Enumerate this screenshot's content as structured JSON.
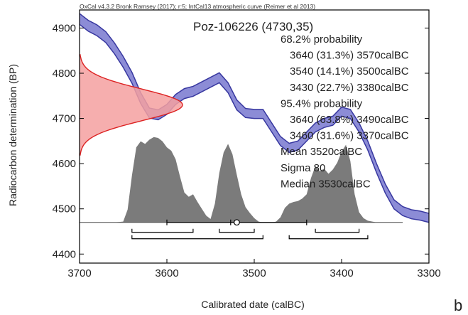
{
  "chart_data": {
    "type": "area",
    "credit": "OxCal v4.3.2 Bronk Ramsey (2017); r:5; IntCal13 atmospheric curve (Reimer et al 2013)",
    "title": "Poz-106226 (4730,35)",
    "xlabel": "Calibrated date (calBC)",
    "ylabel": "Radiocarbon determination (BP)",
    "corner_label": "b",
    "xlim": [
      3700,
      3300
    ],
    "ylim": [
      4380,
      4940
    ],
    "x_ticks": [
      "3700",
      "3600",
      "3500",
      "3400",
      "3300"
    ],
    "y_ticks": [
      "4400",
      "4500",
      "4600",
      "4700",
      "4800",
      "4900"
    ],
    "annotations": [
      "68.2% probability",
      "3640 (31.3%) 3570calBC",
      "3540 (14.1%) 3500calBC",
      "3430 (22.7%) 3380calBC",
      "95.4% probability",
      "3640 (63.8%) 3490calBC",
      "3460 (31.6%) 3370calBC",
      "Mean 3520calBC",
      "Sigma 80",
      "Median 3530calBC"
    ],
    "colors": {
      "curve_fill": "#8c8cd6",
      "curve_line": "#3838a0",
      "measurement_fill": "#f4a0a0",
      "measurement_line": "#dd2222",
      "posterior_fill": "#7b7b7b"
    },
    "measurement": {
      "mean_bp": 4730,
      "sigma_bp": 35
    },
    "calibration_curve": {
      "x": [
        3700,
        3690,
        3680,
        3670,
        3660,
        3650,
        3640,
        3630,
        3620,
        3610,
        3600,
        3590,
        3580,
        3570,
        3560,
        3550,
        3540,
        3530,
        3520,
        3510,
        3500,
        3490,
        3480,
        3470,
        3460,
        3450,
        3440,
        3430,
        3420,
        3410,
        3400,
        3390,
        3380,
        3370,
        3360,
        3350,
        3340,
        3330,
        3320,
        3310,
        3300
      ],
      "mean": [
        4920,
        4905,
        4895,
        4880,
        4855,
        4825,
        4790,
        4745,
        4712,
        4708,
        4720,
        4742,
        4755,
        4760,
        4770,
        4780,
        4790,
        4768,
        4730,
        4712,
        4710,
        4710,
        4680,
        4650,
        4635,
        4640,
        4660,
        4680,
        4690,
        4695,
        4715,
        4710,
        4680,
        4640,
        4590,
        4545,
        4510,
        4495,
        4488,
        4485,
        4480
      ],
      "sigma": [
        12,
        12,
        12,
        12,
        12,
        12,
        12,
        12,
        11,
        11,
        11,
        11,
        11,
        11,
        11,
        11,
        11,
        11,
        11,
        10,
        10,
        10,
        10,
        10,
        10,
        10,
        10,
        10,
        10,
        10,
        10,
        10,
        10,
        10,
        10,
        10,
        10,
        10,
        10,
        10,
        10
      ]
    },
    "posterior": {
      "x": [
        3700,
        3690,
        3680,
        3670,
        3660,
        3650,
        3645,
        3640,
        3635,
        3630,
        3625,
        3620,
        3615,
        3610,
        3605,
        3600,
        3595,
        3590,
        3585,
        3580,
        3575,
        3570,
        3565,
        3560,
        3555,
        3550,
        3545,
        3540,
        3535,
        3530,
        3525,
        3520,
        3515,
        3510,
        3505,
        3500,
        3495,
        3490,
        3480,
        3475,
        3470,
        3465,
        3460,
        3455,
        3450,
        3445,
        3440,
        3435,
        3430,
        3425,
        3420,
        3415,
        3410,
        3405,
        3400,
        3395,
        3390,
        3385,
        3380,
        3375,
        3370,
        3360,
        3350,
        3340,
        3330,
        3320
      ],
      "density": [
        0,
        0,
        0,
        0,
        0,
        0.01,
        0.15,
        0.55,
        0.88,
        0.95,
        0.92,
        0.97,
        1.0,
        0.99,
        0.95,
        0.88,
        0.84,
        0.74,
        0.54,
        0.35,
        0.3,
        0.33,
        0.24,
        0.16,
        0.08,
        0.04,
        0.22,
        0.58,
        0.82,
        0.92,
        0.8,
        0.56,
        0.33,
        0.18,
        0.11,
        0.05,
        0.01,
        0,
        0,
        0.01,
        0.06,
        0.17,
        0.22,
        0.24,
        0.25,
        0.28,
        0.33,
        0.52,
        0.66,
        0.6,
        0.63,
        0.57,
        0.62,
        0.7,
        0.83,
        0.91,
        0.72,
        0.33,
        0.12,
        0.05,
        0.02,
        0,
        0,
        0,
        0,
        0
      ]
    },
    "ranges_68": [
      [
        3640,
        3570
      ],
      [
        3540,
        3500
      ],
      [
        3430,
        3380
      ]
    ],
    "ranges_95": [
      [
        3640,
        3490
      ],
      [
        3460,
        3370
      ]
    ],
    "mean_marker": 3520,
    "sigma_bar": [
      3600,
      3440
    ]
  }
}
